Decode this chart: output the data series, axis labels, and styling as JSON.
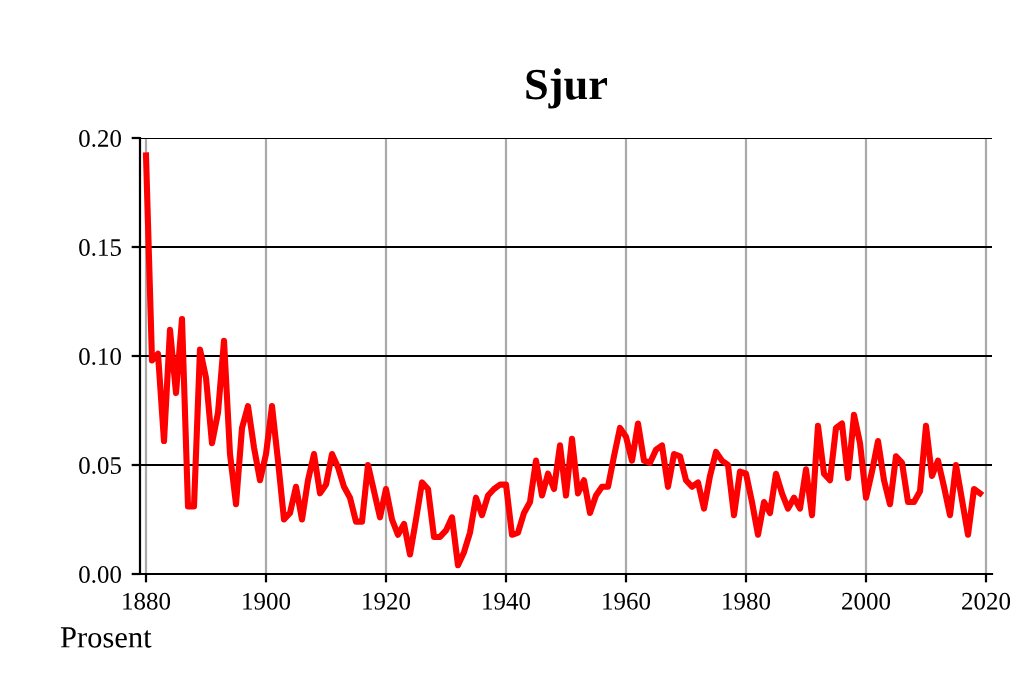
{
  "chart_data": {
    "type": "line",
    "title": "Sjur",
    "ylabel": "Prosent",
    "x": [
      1880,
      1881,
      1882,
      1883,
      1884,
      1885,
      1886,
      1887,
      1888,
      1889,
      1890,
      1891,
      1892,
      1893,
      1894,
      1895,
      1896,
      1897,
      1898,
      1899,
      1900,
      1901,
      1902,
      1903,
      1904,
      1905,
      1906,
      1907,
      1908,
      1909,
      1910,
      1911,
      1912,
      1913,
      1914,
      1915,
      1916,
      1917,
      1918,
      1919,
      1920,
      1921,
      1922,
      1923,
      1924,
      1925,
      1926,
      1927,
      1928,
      1929,
      1930,
      1931,
      1932,
      1933,
      1934,
      1935,
      1936,
      1937,
      1938,
      1939,
      1940,
      1941,
      1942,
      1943,
      1944,
      1945,
      1946,
      1947,
      1948,
      1949,
      1950,
      1951,
      1952,
      1953,
      1954,
      1955,
      1956,
      1957,
      1958,
      1959,
      1960,
      1961,
      1962,
      1963,
      1964,
      1965,
      1966,
      1967,
      1968,
      1969,
      1970,
      1971,
      1972,
      1973,
      1974,
      1975,
      1976,
      1977,
      1978,
      1979,
      1980,
      1981,
      1982,
      1983,
      1984,
      1985,
      1986,
      1987,
      1988,
      1989,
      1990,
      1991,
      1992,
      1993,
      1994,
      1995,
      1996,
      1997,
      1998,
      1999,
      2000,
      2001,
      2002,
      2003,
      2004,
      2005,
      2006,
      2007,
      2008,
      2009,
      2010,
      2011,
      2012,
      2013,
      2014,
      2015,
      2016,
      2017,
      2018,
      2019
    ],
    "series": [
      {
        "color": "#ff0000",
        "values": [
          0.192,
          0.098,
          0.101,
          0.061,
          0.112,
          0.083,
          0.117,
          0.031,
          0.031,
          0.103,
          0.09,
          0.06,
          0.074,
          0.107,
          0.055,
          0.032,
          0.067,
          0.077,
          0.058,
          0.043,
          0.055,
          0.077,
          0.052,
          0.025,
          0.028,
          0.04,
          0.025,
          0.043,
          0.055,
          0.037,
          0.041,
          0.055,
          0.049,
          0.04,
          0.035,
          0.024,
          0.024,
          0.05,
          0.038,
          0.026,
          0.039,
          0.025,
          0.018,
          0.023,
          0.009,
          0.025,
          0.042,
          0.039,
          0.017,
          0.017,
          0.02,
          0.026,
          0.004,
          0.01,
          0.019,
          0.035,
          0.027,
          0.036,
          0.039,
          0.041,
          0.041,
          0.018,
          0.019,
          0.028,
          0.033,
          0.052,
          0.036,
          0.046,
          0.039,
          0.059,
          0.036,
          0.062,
          0.037,
          0.043,
          0.028,
          0.036,
          0.04,
          0.04,
          0.054,
          0.067,
          0.063,
          0.052,
          0.069,
          0.052,
          0.051,
          0.057,
          0.059,
          0.04,
          0.055,
          0.054,
          0.043,
          0.04,
          0.042,
          0.03,
          0.045,
          0.056,
          0.052,
          0.05,
          0.027,
          0.047,
          0.046,
          0.033,
          0.018,
          0.033,
          0.028,
          0.046,
          0.037,
          0.03,
          0.035,
          0.03,
          0.048,
          0.027,
          0.068,
          0.046,
          0.043,
          0.067,
          0.069,
          0.044,
          0.073,
          0.06,
          0.035,
          0.047,
          0.061,
          0.043,
          0.032,
          0.054,
          0.051,
          0.033,
          0.033,
          0.038,
          0.068,
          0.045,
          0.052,
          0.04,
          0.027,
          0.05,
          0.034,
          0.018,
          0.039,
          0.037
        ]
      }
    ],
    "xlim": [
      1879,
      2021
    ],
    "ylim": [
      0,
      0.2
    ],
    "xticks": [
      1880,
      1900,
      1920,
      1940,
      1960,
      1980,
      2000,
      2020
    ],
    "yticks": [
      {
        "value": 0,
        "label": "0.00"
      },
      {
        "value": 0.05,
        "label": "0.05"
      },
      {
        "value": 0.1,
        "label": "0.10"
      },
      {
        "value": 0.15,
        "label": "0.15"
      },
      {
        "value": 0.2,
        "label": "0.20"
      }
    ],
    "grid": true,
    "marker": "none",
    "line_style": "solid"
  }
}
